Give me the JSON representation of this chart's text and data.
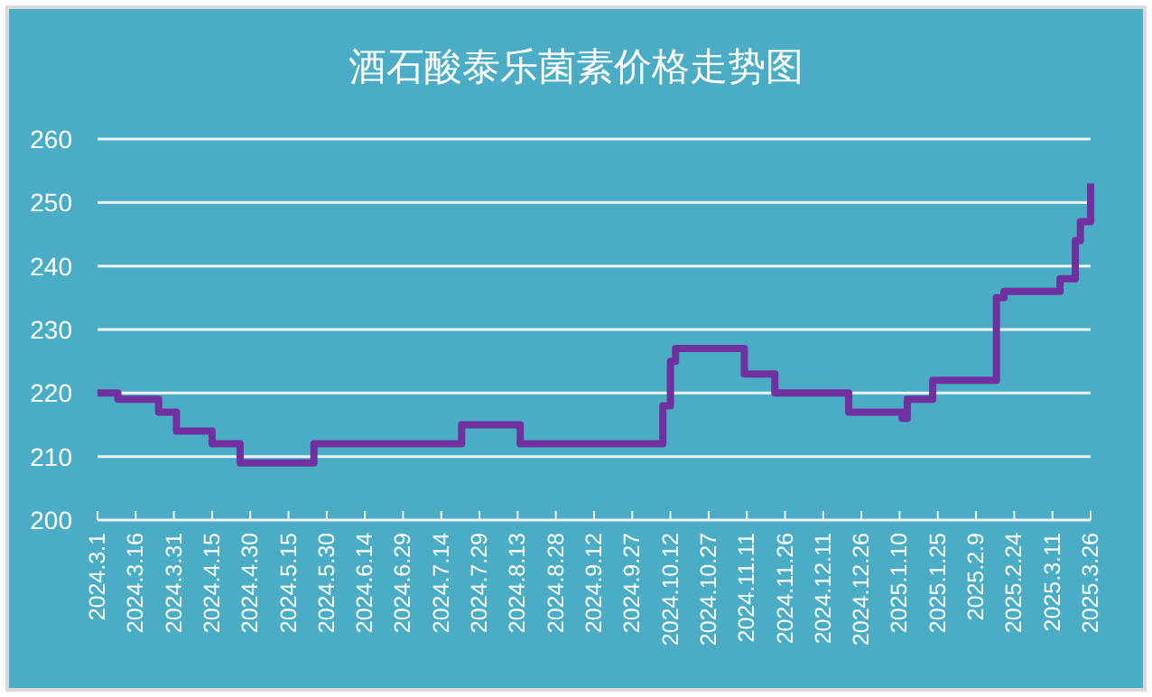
{
  "chart_data": {
    "type": "step",
    "title": "酒石酸泰乐菌素价格走势图",
    "x": [
      "2024-03-01",
      "2024-03-09",
      "2024-03-25",
      "2024-04-01",
      "2024-04-15",
      "2024-04-26",
      "2024-05-25",
      "2024-07-22",
      "2024-08-14",
      "2024-10-09",
      "2024-10-12",
      "2024-10-14",
      "2024-11-10",
      "2024-11-22",
      "2024-12-21",
      "2025-01-11",
      "2025-01-13",
      "2025-01-23",
      "2025-02-17",
      "2025-02-20",
      "2025-03-14",
      "2025-03-20",
      "2025-03-22",
      "2025-03-26"
    ],
    "series": [
      {
        "color": "#7030a0",
        "values": [
          220,
          219,
          217,
          214,
          212,
          209,
          212,
          215,
          212,
          218,
          225,
          227,
          223,
          220,
          217,
          216,
          219,
          222,
          235,
          236,
          238,
          244,
          247,
          253
        ]
      }
    ],
    "xlim": [
      "2024-03-01",
      "2025-03-26"
    ],
    "xticks": [
      {
        "value": "2024-03-01",
        "label": "2024.3.1"
      },
      {
        "value": "2024-03-16",
        "label": "2024.3.16"
      },
      {
        "value": "2024-03-31",
        "label": "2024.3.31"
      },
      {
        "value": "2024-04-15",
        "label": "2024.4.15"
      },
      {
        "value": "2024-04-30",
        "label": "2024.4.30"
      },
      {
        "value": "2024-05-15",
        "label": "2024.5.15"
      },
      {
        "value": "2024-05-30",
        "label": "2024.5.30"
      },
      {
        "value": "2024-06-14",
        "label": "2024.6.14"
      },
      {
        "value": "2024-06-29",
        "label": "2024.6.29"
      },
      {
        "value": "2024-07-14",
        "label": "2024.7.14"
      },
      {
        "value": "2024-07-29",
        "label": "2024.7.29"
      },
      {
        "value": "2024-08-13",
        "label": "2024.8.13"
      },
      {
        "value": "2024-08-28",
        "label": "2024.8.28"
      },
      {
        "value": "2024-09-12",
        "label": "2024.9.12"
      },
      {
        "value": "2024-09-27",
        "label": "2024.9.27"
      },
      {
        "value": "2024-10-12",
        "label": "2024.10.12"
      },
      {
        "value": "2024-10-27",
        "label": "2024.10.27"
      },
      {
        "value": "2024-11-11",
        "label": "2024.11.11"
      },
      {
        "value": "2024-11-26",
        "label": "2024.11.26"
      },
      {
        "value": "2024-12-11",
        "label": "2024.12.11"
      },
      {
        "value": "2024-12-26",
        "label": "2024.12.26"
      },
      {
        "value": "2025-01-10",
        "label": "2025.1.10"
      },
      {
        "value": "2025-01-25",
        "label": "2025.1.25"
      },
      {
        "value": "2025-02-09",
        "label": "2025.2.9"
      },
      {
        "value": "2025-02-24",
        "label": "2025.2.24"
      },
      {
        "value": "2025-03-11",
        "label": "2025.3.11"
      },
      {
        "value": "2025-03-26",
        "label": "2025.3.26"
      }
    ],
    "ylim": [
      200,
      260
    ],
    "yticks": [
      200,
      210,
      220,
      230,
      240,
      250,
      260
    ],
    "grid": "y"
  }
}
